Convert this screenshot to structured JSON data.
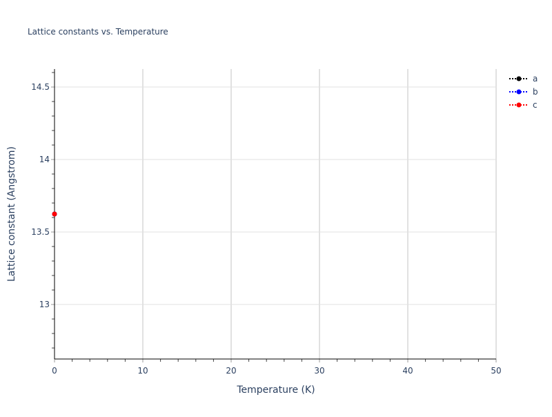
{
  "chart_data": {
    "type": "line",
    "title": "Lattice constants vs. Temperature",
    "xlabel": "Temperature (K)",
    "ylabel": "Lattice constant (Angstrom)",
    "xlim": [
      0,
      50
    ],
    "ylim": [
      12.624,
      14.624
    ],
    "xticks": [
      0,
      10,
      20,
      30,
      40,
      50
    ],
    "yticks": [
      13,
      13.5,
      14,
      14.5
    ],
    "grid": true,
    "legend_position": "top-right",
    "series": [
      {
        "name": "a",
        "color": "#000000",
        "x": [
          0
        ],
        "y": [
          13.624
        ],
        "line": "dotted",
        "marker": "circle"
      },
      {
        "name": "b",
        "color": "#0000ff",
        "x": [
          0
        ],
        "y": [
          13.624
        ],
        "line": "dotted",
        "marker": "circle"
      },
      {
        "name": "c",
        "color": "#ff0000",
        "x": [
          0
        ],
        "y": [
          13.624
        ],
        "line": "dotted",
        "marker": "circle"
      }
    ]
  }
}
